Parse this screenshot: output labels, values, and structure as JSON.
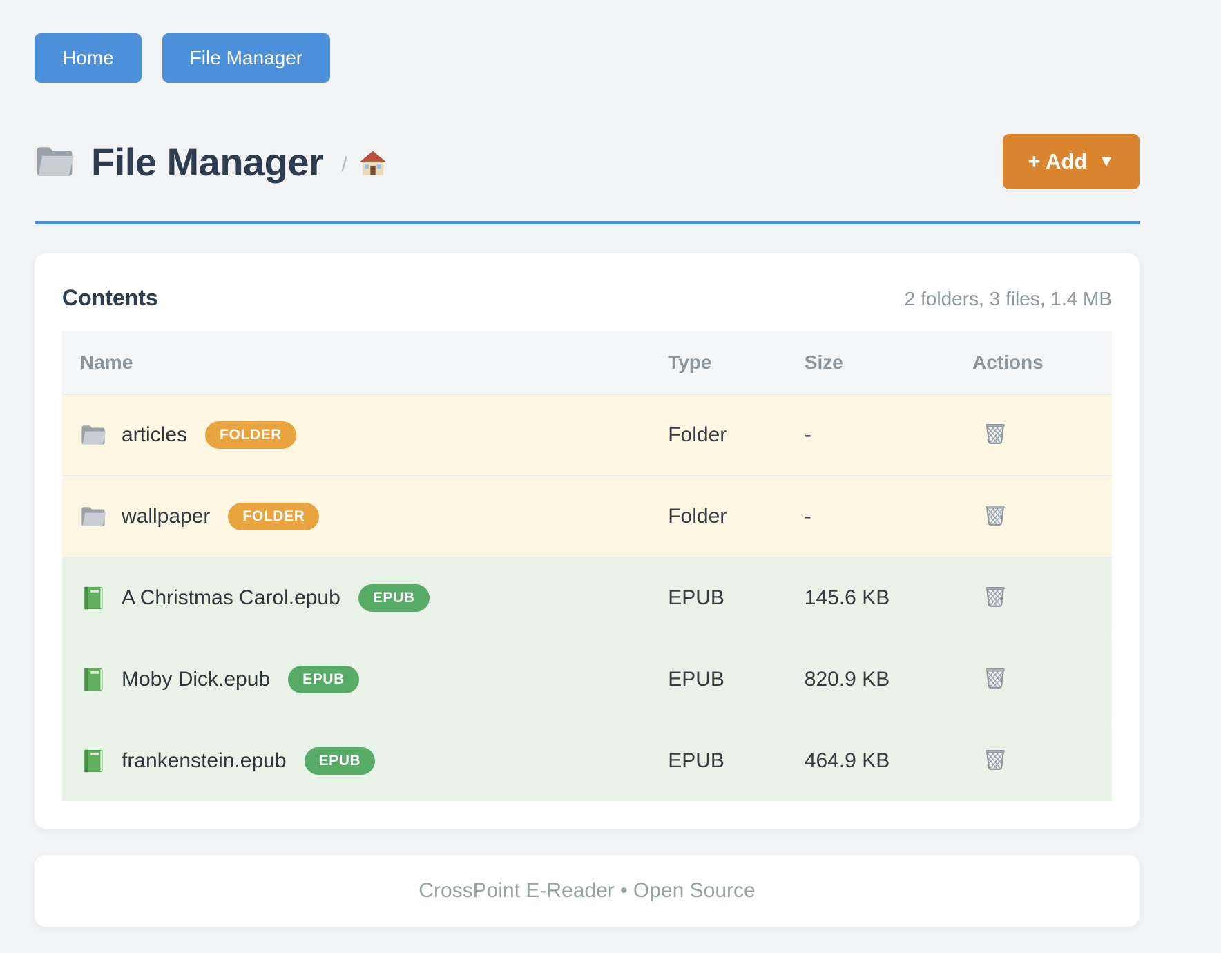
{
  "nav": {
    "buttons": [
      {
        "label": "Home"
      },
      {
        "label": "File Manager"
      }
    ]
  },
  "header": {
    "title_icon": "folder",
    "title": "File Manager",
    "breadcrumb_separator": "/",
    "breadcrumb_home_icon": "house",
    "add_button": {
      "label": "+ Add",
      "caret": "▼"
    }
  },
  "contents": {
    "title": "Contents",
    "summary": "2 folders, 3 files, 1.4 MB",
    "table": {
      "headers": [
        "Name",
        "Type",
        "Size",
        "Actions"
      ],
      "rows": [
        {
          "icon": "folder",
          "kind": "folder",
          "name": "articles",
          "badge": "FOLDER",
          "type": "Folder",
          "size": "-",
          "action_icon": "trash"
        },
        {
          "icon": "folder",
          "kind": "folder",
          "name": "wallpaper",
          "badge": "FOLDER",
          "type": "Folder",
          "size": "-",
          "action_icon": "trash"
        },
        {
          "icon": "book",
          "kind": "epub",
          "name": "A Christmas Carol.epub",
          "badge": "EPUB",
          "type": "EPUB",
          "size": "145.6 KB",
          "action_icon": "trash"
        },
        {
          "icon": "book",
          "kind": "epub",
          "name": "Moby Dick.epub",
          "badge": "EPUB",
          "type": "EPUB",
          "size": "820.9 KB",
          "action_icon": "trash"
        },
        {
          "icon": "book",
          "kind": "epub",
          "name": "frankenstein.epub",
          "badge": "EPUB",
          "type": "EPUB",
          "size": "464.9 KB",
          "action_icon": "trash"
        }
      ]
    }
  },
  "footer": {
    "text": "CrossPoint E-Reader • Open Source"
  },
  "colors": {
    "accent_blue": "#4b90d9",
    "accent_orange": "#d9852f",
    "badge_folder_bg": "#e9a440",
    "badge_epub_bg": "#56ab66",
    "row_folder_bg": "#fdf6e2",
    "row_epub_bg": "#e8f2e7"
  }
}
